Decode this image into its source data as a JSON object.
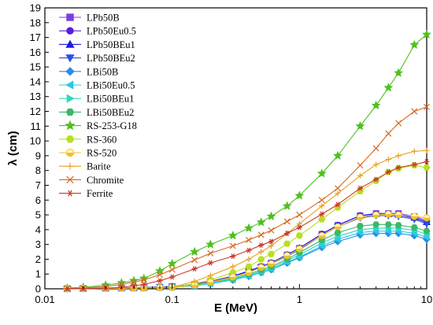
{
  "chart_data": {
    "type": "line",
    "xlabel": "E (MeV)",
    "ylabel": "λ (cm)",
    "xscale": "log",
    "xlim": [
      0.01,
      10
    ],
    "ylim": [
      0,
      19
    ],
    "xticks": [
      {
        "value": 0.01,
        "label": "0.01"
      },
      {
        "value": 0.1,
        "label": "0.1"
      },
      {
        "value": 1,
        "label": "1"
      },
      {
        "value": 10,
        "label": "10"
      }
    ],
    "yticks": [
      0,
      1,
      2,
      3,
      4,
      5,
      6,
      7,
      8,
      9,
      10,
      11,
      12,
      13,
      14,
      15,
      16,
      17,
      18,
      19
    ],
    "legend_position": "top-left",
    "x": [
      0.015,
      0.02,
      0.03,
      0.04,
      0.05,
      0.06,
      0.08,
      0.1,
      0.15,
      0.2,
      0.3,
      0.4,
      0.5,
      0.6,
      0.8,
      1.0,
      1.5,
      2.0,
      3.0,
      4.0,
      5.0,
      6.0,
      8.0,
      10.0
    ],
    "series": [
      {
        "name": "LPb50B",
        "color": "#7b3fe0",
        "marker": "square",
        "values": [
          0.01,
          0.02,
          0.03,
          0.05,
          0.07,
          0.09,
          0.12,
          0.16,
          0.3,
          0.5,
          0.85,
          1.2,
          1.5,
          1.75,
          2.3,
          2.75,
          3.7,
          4.3,
          4.95,
          5.1,
          5.1,
          5.1,
          4.9,
          4.6
        ]
      },
      {
        "name": "LPb50Eu0.5",
        "color": "#5a1ed8",
        "marker": "circle",
        "values": [
          0.01,
          0.02,
          0.03,
          0.05,
          0.07,
          0.09,
          0.12,
          0.16,
          0.3,
          0.5,
          0.85,
          1.2,
          1.5,
          1.75,
          2.3,
          2.75,
          3.7,
          4.3,
          4.95,
          5.05,
          5.05,
          5.0,
          4.8,
          4.5
        ]
      },
      {
        "name": "LPb50BEu1",
        "color": "#1a1ae8",
        "marker": "triangle-up",
        "values": [
          0.01,
          0.02,
          0.03,
          0.05,
          0.07,
          0.09,
          0.12,
          0.16,
          0.3,
          0.5,
          0.85,
          1.2,
          1.5,
          1.75,
          2.3,
          2.75,
          3.7,
          4.3,
          4.95,
          5.05,
          5.05,
          5.0,
          4.8,
          4.5
        ]
      },
      {
        "name": "LPb50BEu2",
        "color": "#2a4de8",
        "marker": "triangle-down",
        "values": [
          0.01,
          0.02,
          0.03,
          0.05,
          0.07,
          0.09,
          0.12,
          0.16,
          0.28,
          0.48,
          0.8,
          1.15,
          1.45,
          1.7,
          2.2,
          2.65,
          3.6,
          4.2,
          4.8,
          4.95,
          4.95,
          4.9,
          4.7,
          4.4
        ]
      },
      {
        "name": "LBi50B",
        "color": "#2a8de8",
        "marker": "diamond",
        "values": [
          0.01,
          0.02,
          0.03,
          0.04,
          0.05,
          0.06,
          0.08,
          0.1,
          0.2,
          0.35,
          0.6,
          0.85,
          1.1,
          1.3,
          1.75,
          2.1,
          2.8,
          3.2,
          3.65,
          3.75,
          3.75,
          3.75,
          3.6,
          3.35
        ]
      },
      {
        "name": "LBi50Eu0.5",
        "color": "#28c8e8",
        "marker": "triangle-left",
        "values": [
          0.01,
          0.02,
          0.03,
          0.04,
          0.05,
          0.06,
          0.08,
          0.1,
          0.2,
          0.36,
          0.62,
          0.88,
          1.12,
          1.32,
          1.8,
          2.15,
          2.9,
          3.35,
          3.8,
          3.9,
          3.9,
          3.9,
          3.75,
          3.5
        ]
      },
      {
        "name": "LBi50BEu1",
        "color": "#30d8c0",
        "marker": "triangle-right",
        "values": [
          0.01,
          0.02,
          0.03,
          0.04,
          0.05,
          0.06,
          0.08,
          0.1,
          0.22,
          0.38,
          0.65,
          0.92,
          1.18,
          1.4,
          1.9,
          2.3,
          3.1,
          3.55,
          4.0,
          4.1,
          4.1,
          4.1,
          3.95,
          3.7
        ]
      },
      {
        "name": "LBi50BEu2",
        "color": "#3ab86a",
        "marker": "hexagon",
        "values": [
          0.01,
          0.02,
          0.03,
          0.04,
          0.05,
          0.06,
          0.08,
          0.1,
          0.24,
          0.42,
          0.72,
          1.0,
          1.28,
          1.5,
          2.0,
          2.45,
          3.3,
          3.8,
          4.25,
          4.35,
          4.35,
          4.3,
          4.15,
          3.9
        ]
      },
      {
        "name": "RS-253-G18",
        "color": "#50c020",
        "marker": "star",
        "values": [
          0.05,
          0.1,
          0.25,
          0.4,
          0.55,
          0.7,
          1.2,
          1.7,
          2.5,
          3.0,
          3.6,
          4.1,
          4.5,
          4.9,
          5.6,
          6.3,
          7.8,
          9.0,
          11.0,
          12.4,
          13.6,
          14.6,
          16.5,
          17.2
        ]
      },
      {
        "name": "RS-360",
        "color": "#b8e020",
        "marker": "hexagon",
        "values": [
          0.01,
          0.02,
          0.03,
          0.04,
          0.05,
          0.06,
          0.08,
          0.1,
          0.35,
          0.6,
          1.1,
          1.5,
          2.0,
          2.35,
          3.05,
          3.6,
          4.7,
          5.5,
          6.6,
          7.3,
          7.9,
          8.15,
          8.35,
          8.2
        ]
      },
      {
        "name": "RS-520",
        "color": "#f0c020",
        "marker": "circle-half",
        "values": [
          0.01,
          0.02,
          0.03,
          0.04,
          0.05,
          0.06,
          0.08,
          0.1,
          0.25,
          0.45,
          0.8,
          1.1,
          1.45,
          1.7,
          2.25,
          2.7,
          3.6,
          4.2,
          4.85,
          5.0,
          5.05,
          5.0,
          4.9,
          4.8
        ]
      },
      {
        "name": "Barite",
        "color": "#e8a020",
        "marker": "plus",
        "values": [
          0.01,
          0.02,
          0.03,
          0.04,
          0.05,
          0.06,
          0.08,
          0.1,
          0.5,
          0.9,
          1.5,
          2.0,
          2.5,
          2.9,
          3.75,
          4.4,
          5.6,
          6.45,
          7.65,
          8.4,
          8.75,
          9.0,
          9.3,
          9.35
        ]
      },
      {
        "name": "Chromite",
        "color": "#d86a20",
        "marker": "x",
        "values": [
          0.03,
          0.05,
          0.15,
          0.3,
          0.45,
          0.6,
          0.95,
          1.3,
          1.95,
          2.4,
          2.9,
          3.3,
          3.65,
          3.95,
          4.55,
          5.0,
          6.0,
          6.8,
          8.35,
          9.5,
          10.5,
          11.2,
          12.0,
          12.3
        ]
      },
      {
        "name": "Ferrite",
        "color": "#c83a2a",
        "marker": "asterisk",
        "values": [
          0.01,
          0.02,
          0.05,
          0.1,
          0.2,
          0.3,
          0.55,
          0.8,
          1.35,
          1.75,
          2.2,
          2.6,
          2.95,
          3.2,
          3.75,
          4.15,
          5.05,
          5.7,
          6.8,
          7.4,
          7.9,
          8.2,
          8.4,
          8.6
        ]
      }
    ]
  }
}
